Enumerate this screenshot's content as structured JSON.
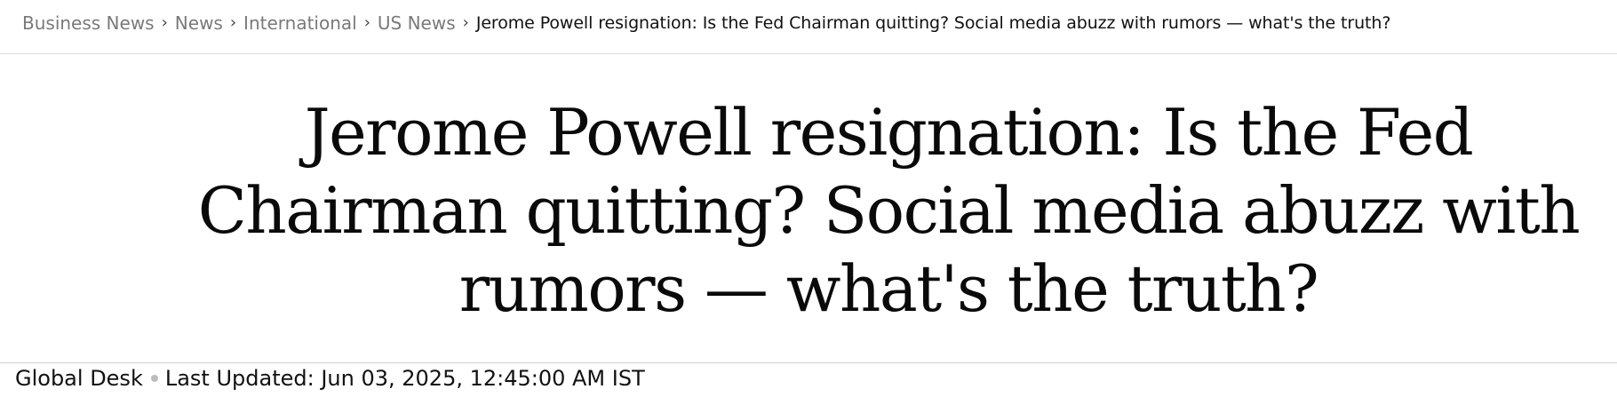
{
  "breadcrumb": {
    "items": [
      {
        "label": "Business News"
      },
      {
        "label": "News"
      },
      {
        "label": "International"
      },
      {
        "label": "US News"
      }
    ],
    "separator": "›",
    "current": "Jerome Powell resignation: Is the Fed Chairman quitting? Social media abuzz with rumors — what's the truth?"
  },
  "article": {
    "headline": "Jerome Powell resignation: Is the Fed Chairman quitting? Social media abuzz with rumors — what's the truth?",
    "author": "Global Desk",
    "updated": "Last Updated: Jun 03, 2025, 12:45:00 AM IST"
  }
}
